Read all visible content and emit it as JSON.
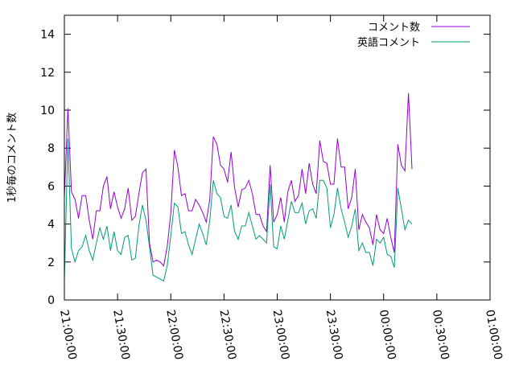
{
  "chart_data": {
    "type": "line",
    "ylabel": "1秒毎のコメント数",
    "xlabel": "",
    "ylim": [
      0,
      15
    ],
    "yticks": [
      "0",
      "2",
      "4",
      "6",
      "8",
      "10",
      "12",
      "14"
    ],
    "xtick_labels": [
      "21:00:00",
      "21:30:00",
      "22:00:00",
      "22:30:00",
      "23:00:00",
      "23:30:00",
      "00:00:00",
      "00:30:00",
      "01:00:00"
    ],
    "x_range_minutes": [
      0,
      240
    ],
    "x_tick_step_minutes": 30,
    "sample_interval_minutes": 2,
    "legend_position": "top-right",
    "series": [
      {
        "name": "コメント数",
        "color": "#9400d3",
        "values": [
          5.4,
          10.1,
          5.7,
          5.3,
          4.3,
          5.5,
          5.5,
          4.2,
          3.2,
          4.7,
          4.7,
          6.0,
          6.5,
          4.8,
          5.7,
          4.9,
          4.3,
          4.8,
          5.9,
          4.2,
          4.4,
          5.6,
          6.7,
          6.9,
          3.0,
          2.0,
          2.1,
          2.0,
          1.8,
          2.8,
          4.6,
          7.9,
          7.0,
          5.5,
          5.6,
          4.7,
          4.7,
          5.3,
          5.0,
          4.6,
          4.1,
          5.3,
          8.6,
          8.2,
          7.1,
          6.9,
          6.2,
          7.8,
          5.9,
          4.9,
          5.8,
          5.9,
          6.3,
          5.6,
          4.5,
          4.5,
          3.9,
          3.6,
          7.1,
          4.1,
          4.5,
          5.4,
          4.1,
          5.7,
          6.3,
          5.2,
          5.5,
          6.9,
          5.6,
          7.2,
          6.1,
          5.6,
          8.4,
          7.3,
          7.2,
          6.1,
          6.1,
          8.5,
          7.0,
          7.0,
          4.8,
          5.4,
          6.9,
          3.7,
          4.5,
          4.1,
          3.8,
          2.9,
          4.5,
          3.7,
          3.5,
          4.3,
          3.3,
          2.5,
          8.2,
          7.1,
          6.8,
          10.9,
          6.9
        ]
      },
      {
        "name": "英語コメント",
        "color": "#009e73",
        "values": [
          1.0,
          8.5,
          2.7,
          2.0,
          2.6,
          2.8,
          3.4,
          2.6,
          2.1,
          3.0,
          3.8,
          3.2,
          3.9,
          2.6,
          3.6,
          2.6,
          2.4,
          3.3,
          3.4,
          2.1,
          2.2,
          3.9,
          5.0,
          4.2,
          2.8,
          1.3,
          1.2,
          1.1,
          1.0,
          1.8,
          3.4,
          5.1,
          4.9,
          3.5,
          3.6,
          2.9,
          2.4,
          3.2,
          4.0,
          3.5,
          2.9,
          4.2,
          6.3,
          5.6,
          5.4,
          4.4,
          4.3,
          5.0,
          3.6,
          3.2,
          3.9,
          3.9,
          4.6,
          3.9,
          3.2,
          3.4,
          3.2,
          3.0,
          6.1,
          2.8,
          2.7,
          3.9,
          3.2,
          4.2,
          5.2,
          4.6,
          4.6,
          5.1,
          4.0,
          4.7,
          4.8,
          4.3,
          6.3,
          6.3,
          5.9,
          3.8,
          4.5,
          5.9,
          4.8,
          4.1,
          3.3,
          3.9,
          4.8,
          2.6,
          3.0,
          2.5,
          2.5,
          1.8,
          3.2,
          3.0,
          3.3,
          2.4,
          2.3,
          1.7,
          5.9,
          4.8,
          3.7,
          4.2,
          4.0
        ]
      }
    ]
  }
}
